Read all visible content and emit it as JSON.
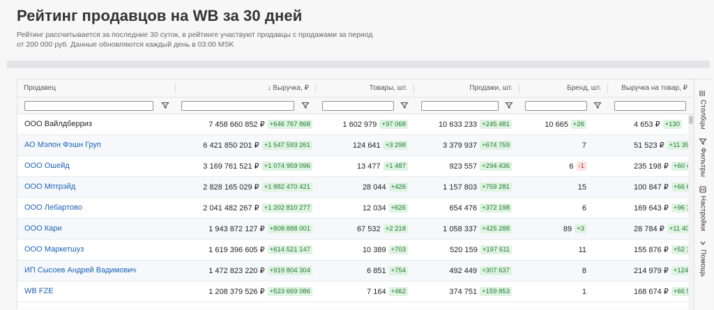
{
  "page": {
    "title": "Рейтинг продавцов на WB за 30 дней",
    "description": "Рейтинг рассчитывается за последние 30 суток, в рейтинге участвуют продавцы с продажами за период от 200 000 руб. Данные обновляются каждый день в 03:00 MSK"
  },
  "columns": [
    {
      "label": "Продавец"
    },
    {
      "label": "Выручка, ₽",
      "sorted": "desc",
      "sort_glyph": "↓"
    },
    {
      "label": "Товары, шт."
    },
    {
      "label": "Продажи, шт."
    },
    {
      "label": "Бренд, шт."
    },
    {
      "label": "Выручка на товар, ₽"
    }
  ],
  "side_tabs": [
    {
      "label": "Столбцы",
      "icon": "columns-icon"
    },
    {
      "label": "Фильтры",
      "icon": "filter-icon"
    },
    {
      "label": "Настройки",
      "icon": "settings-icon"
    },
    {
      "label": "Помощь",
      "icon": "help-icon"
    }
  ],
  "colors": {
    "link": "#1a62b8",
    "positive_bg": "#dff3e2",
    "positive_text": "#1f7a2e",
    "negative_bg": "#fbe2e2",
    "negative_text": "#c53030"
  },
  "rows": [
    {
      "seller": "ООО Вайлдберриз",
      "link": false,
      "revenue": "7 458 660 852 ₽",
      "revenue_delta": "+646 767 868",
      "products": "1 602 979",
      "products_delta": "+97 068",
      "sales": "10 633 233",
      "sales_delta": "+245 481",
      "brands": "10 665",
      "brands_delta": "+26",
      "rev_per_product": "4 653 ₽",
      "rev_per_product_delta": "+130"
    },
    {
      "seller": "АО Мэлон Фэшн Груп",
      "link": true,
      "revenue": "6 421 850 201 ₽",
      "revenue_delta": "+1 547 593 261",
      "products": "124 641",
      "products_delta": "+3 298",
      "sales": "3 379 937",
      "sales_delta": "+674 759",
      "brands": "7",
      "brands_delta": "",
      "rev_per_product": "51 523 ₽",
      "rev_per_product_delta": "+11 35"
    },
    {
      "seller": "ООО Ошейд",
      "link": true,
      "revenue": "3 169 761 521 ₽",
      "revenue_delta": "+1 074 959 096",
      "products": "13 477",
      "products_delta": "+1 487",
      "sales": "923 557",
      "sales_delta": "+294 436",
      "brands": "6",
      "brands_delta": "-1",
      "rev_per_product": "235 198 ₽",
      "rev_per_product_delta": "+60 4"
    },
    {
      "seller": "ООО Мптрэйд",
      "link": true,
      "revenue": "2 828 165 029 ₽",
      "revenue_delta": "+1 882 470 421",
      "products": "28 044",
      "products_delta": "+426",
      "sales": "1 157 803",
      "sales_delta": "+759 281",
      "brands": "15",
      "brands_delta": "",
      "rev_per_product": "100 847 ₽",
      "rev_per_product_delta": "+66 6"
    },
    {
      "seller": "ООО Лебартово",
      "link": true,
      "revenue": "2 041 482 267 ₽",
      "revenue_delta": "+1 202 810 277",
      "products": "12 034",
      "products_delta": "+626",
      "sales": "654 476",
      "sales_delta": "+372 198",
      "brands": "6",
      "brands_delta": "",
      "rev_per_product": "169 643 ₽",
      "rev_per_product_delta": "+96 1"
    },
    {
      "seller": "ООО Кари",
      "link": true,
      "revenue": "1 943 872 127 ₽",
      "revenue_delta": "+808 888 001",
      "products": "67 532",
      "products_delta": "+2 218",
      "sales": "1 058 337",
      "sales_delta": "+425 288",
      "brands": "89",
      "brands_delta": "+3",
      "rev_per_product": "28 784 ₽",
      "rev_per_product_delta": "+11 40"
    },
    {
      "seller": "ООО Маркетшуз",
      "link": true,
      "revenue": "1 619 396 605 ₽",
      "revenue_delta": "+614 521 147",
      "products": "10 389",
      "products_delta": "+703",
      "sales": "520 159",
      "sales_delta": "+197 611",
      "brands": "11",
      "brands_delta": "",
      "rev_per_product": "155 876 ₽",
      "rev_per_product_delta": "+52 1"
    },
    {
      "seller": "ИП Сысоев Андрей Вадимович",
      "link": true,
      "revenue": "1 472 823 220 ₽",
      "revenue_delta": "+919 804 304",
      "products": "6 851",
      "products_delta": "+754",
      "sales": "492 449",
      "sales_delta": "+307 637",
      "brands": "8",
      "brands_delta": "",
      "rev_per_product": "214 979 ₽",
      "rev_per_product_delta": "+124"
    },
    {
      "seller": "WB FZE",
      "link": true,
      "revenue": "1 208 379 526 ₽",
      "revenue_delta": "+523 669 086",
      "products": "7 164",
      "products_delta": "+462",
      "sales": "374 751",
      "sales_delta": "+159 853",
      "brands": "1",
      "brands_delta": "",
      "rev_per_product": "168 674 ₽",
      "rev_per_product_delta": "+66 5"
    }
  ]
}
